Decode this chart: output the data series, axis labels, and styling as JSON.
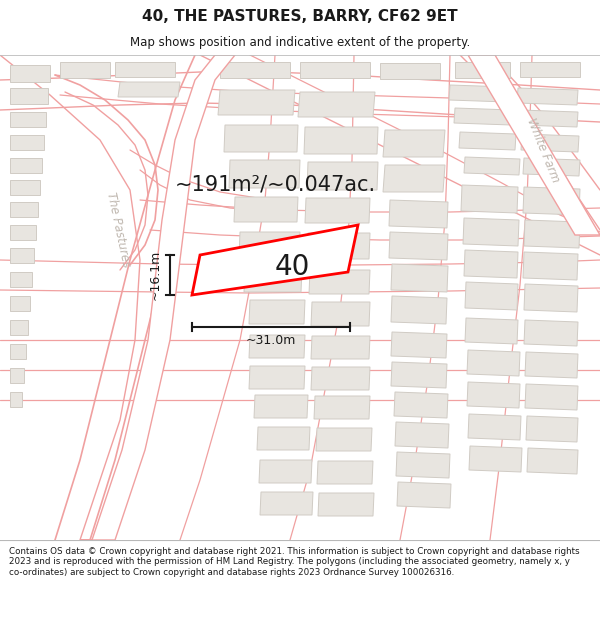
{
  "title": "40, THE PASTURES, BARRY, CF62 9ET",
  "subtitle": "Map shows position and indicative extent of the property.",
  "area_text": "~191m²/~0.047ac.",
  "property_label": "40",
  "dim_h": "~31.0m",
  "dim_v": "~16.1m",
  "street_label_1": "The Pastures",
  "street_label_2": "White Farm",
  "footer": "Contains OS data © Crown copyright and database right 2021. This information is subject to Crown copyright and database rights 2023 and is reproduced with the permission of HM Land Registry. The polygons (including the associated geometry, namely x, y co-ordinates) are subject to Crown copyright and database rights 2023 Ordnance Survey 100026316.",
  "bg_color": "#ffffff",
  "map_bg": "#ffffff",
  "road_color": "#f0a0a0",
  "building_fill": "#e8e5e0",
  "building_edge": "#d0cbc4",
  "property_color": "#ff0000",
  "dim_color": "#1a1a1a",
  "title_color": "#1a1a1a",
  "footer_color": "#1a1a1a",
  "area_text_color": "#1a1a1a",
  "street_color": "#c0b8b0"
}
